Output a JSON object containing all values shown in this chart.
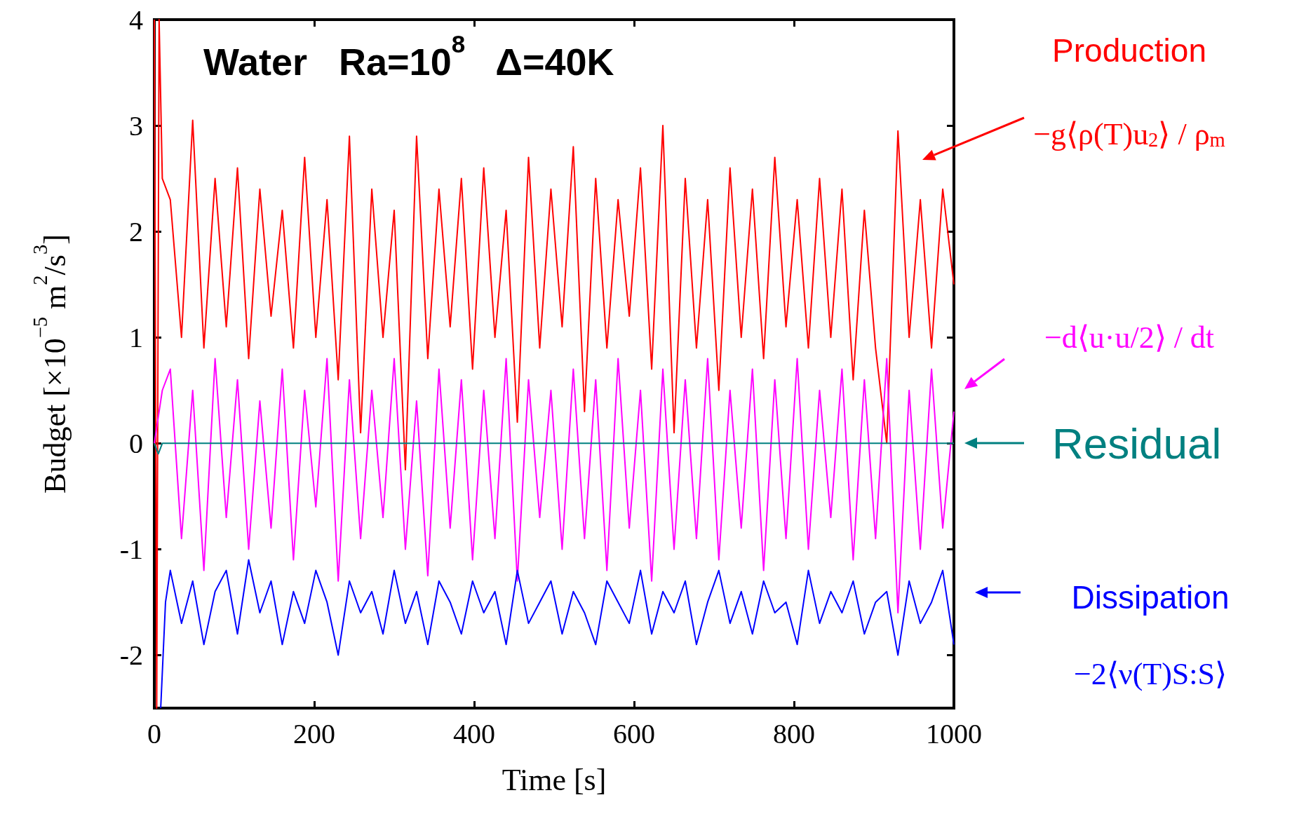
{
  "chart_data": {
    "type": "line",
    "title": "Water   Ra=10$^{8}$   Δ=40K",
    "xlabel": "Time [s]",
    "ylabel": "Budget [×10$^{−5}$ m$^{2}$/s$^{3}$]",
    "xlim": [
      0,
      1000
    ],
    "xticks": [
      0,
      200,
      400,
      600,
      800,
      1000
    ],
    "ylim": [
      -2.5,
      4
    ],
    "yticks": [
      -2,
      -1,
      0,
      1,
      2,
      3,
      4
    ],
    "grid": false,
    "legend": "right",
    "marker": "none",
    "line_style": "solid",
    "annotations": [
      "−g⟨ρ(T)u$_{2}$⟩ / ρ$_{m}$",
      "−d⟨u·u/2⟩ / dt",
      "−2⟨ν(T)S:S⟩"
    ],
    "series": [
      {
        "name": "Production",
        "color": "#ff0000",
        "x": [
          0,
          3,
          6,
          10,
          20,
          34,
          48,
          62,
          76,
          90,
          104,
          118,
          132,
          146,
          160,
          174,
          188,
          202,
          216,
          230,
          244,
          258,
          272,
          286,
          300,
          314,
          328,
          342,
          356,
          370,
          384,
          398,
          412,
          426,
          440,
          454,
          468,
          482,
          496,
          510,
          524,
          538,
          552,
          566,
          580,
          594,
          608,
          622,
          636,
          650,
          664,
          678,
          692,
          706,
          720,
          734,
          748,
          762,
          776,
          790,
          804,
          818,
          832,
          846,
          860,
          874,
          888,
          902,
          916,
          930,
          944,
          958,
          972,
          986,
          1000
        ],
        "values": [
          4,
          -2.5,
          4,
          2.5,
          2.3,
          1.0,
          3.05,
          0.9,
          2.5,
          1.1,
          2.6,
          0.8,
          2.4,
          1.2,
          2.2,
          0.9,
          2.7,
          1.0,
          2.3,
          0.6,
          2.9,
          0.1,
          2.4,
          1.0,
          2.2,
          -0.25,
          2.9,
          0.8,
          2.4,
          1.1,
          2.5,
          0.7,
          2.6,
          1.0,
          2.2,
          0.2,
          2.7,
          0.9,
          2.4,
          1.1,
          2.8,
          0.3,
          2.5,
          0.9,
          2.3,
          1.2,
          2.6,
          0.7,
          3.0,
          0.1,
          2.5,
          0.9,
          2.3,
          0.5,
          2.6,
          1.0,
          2.4,
          0.8,
          2.7,
          1.1,
          2.3,
          0.9,
          2.5,
          1.0,
          2.4,
          0.6,
          2.2,
          0.9,
          0.0,
          2.95,
          1.0,
          2.3,
          0.9,
          2.4,
          1.5
        ]
      },
      {
        "color": "#ff00ff",
        "x": [
          0,
          10,
          20,
          34,
          48,
          62,
          76,
          90,
          104,
          118,
          132,
          146,
          160,
          174,
          188,
          202,
          216,
          230,
          244,
          258,
          272,
          286,
          300,
          314,
          328,
          342,
          356,
          370,
          384,
          398,
          412,
          426,
          440,
          454,
          468,
          482,
          496,
          510,
          524,
          538,
          552,
          566,
          580,
          594,
          608,
          622,
          636,
          650,
          664,
          678,
          692,
          706,
          720,
          734,
          748,
          762,
          776,
          790,
          804,
          818,
          832,
          846,
          860,
          874,
          888,
          902,
          916,
          930,
          944,
          958,
          972,
          986,
          1000
        ],
        "values": [
          0,
          0.5,
          0.7,
          -0.9,
          0.5,
          -1.2,
          0.8,
          -0.7,
          0.6,
          -1.0,
          0.4,
          -0.8,
          0.7,
          -1.1,
          0.5,
          -0.6,
          0.8,
          -1.3,
          0.6,
          -0.9,
          0.5,
          -0.7,
          0.8,
          -1.0,
          0.4,
          -1.25,
          0.7,
          -0.8,
          0.6,
          -1.1,
          0.5,
          -0.9,
          0.8,
          -1.3,
          0.6,
          -0.7,
          0.5,
          -1.0,
          0.7,
          -0.9,
          0.6,
          -1.2,
          0.8,
          -0.8,
          0.5,
          -1.3,
          0.7,
          -1.0,
          0.6,
          -0.9,
          0.8,
          -1.1,
          0.5,
          -0.8,
          0.7,
          -1.2,
          0.6,
          -0.9,
          0.8,
          -1.0,
          0.5,
          -0.7,
          0.7,
          -1.1,
          0.6,
          -0.9,
          0.8,
          -1.6,
          0.5,
          -1.0,
          0.7,
          -0.8,
          0.3
        ]
      },
      {
        "name": "Residual",
        "color": "#008080",
        "x": [
          0,
          5,
          10,
          1000
        ],
        "values": [
          0,
          -0.1,
          0,
          0
        ]
      },
      {
        "name": "Dissipation",
        "color": "#0000ff",
        "x": [
          8,
          14,
          20,
          34,
          48,
          62,
          76,
          90,
          104,
          118,
          132,
          146,
          160,
          174,
          188,
          202,
          216,
          230,
          244,
          258,
          272,
          286,
          300,
          314,
          328,
          342,
          356,
          370,
          384,
          398,
          412,
          426,
          440,
          454,
          468,
          482,
          496,
          510,
          524,
          538,
          552,
          566,
          580,
          594,
          608,
          622,
          636,
          650,
          664,
          678,
          692,
          706,
          720,
          734,
          748,
          762,
          776,
          790,
          804,
          818,
          832,
          846,
          860,
          874,
          888,
          902,
          916,
          930,
          944,
          958,
          972,
          986,
          1000
        ],
        "values": [
          -2.5,
          -1.5,
          -1.2,
          -1.7,
          -1.3,
          -1.9,
          -1.4,
          -1.2,
          -1.8,
          -1.1,
          -1.6,
          -1.3,
          -1.9,
          -1.4,
          -1.7,
          -1.2,
          -1.5,
          -2.0,
          -1.3,
          -1.6,
          -1.4,
          -1.8,
          -1.2,
          -1.7,
          -1.4,
          -1.9,
          -1.3,
          -1.5,
          -1.8,
          -1.3,
          -1.6,
          -1.4,
          -1.9,
          -1.2,
          -1.7,
          -1.5,
          -1.3,
          -1.8,
          -1.4,
          -1.6,
          -1.9,
          -1.3,
          -1.5,
          -1.7,
          -1.2,
          -1.8,
          -1.4,
          -1.6,
          -1.3,
          -1.9,
          -1.5,
          -1.2,
          -1.7,
          -1.4,
          -1.8,
          -1.3,
          -1.6,
          -1.5,
          -1.9,
          -1.2,
          -1.7,
          -1.4,
          -1.6,
          -1.3,
          -1.8,
          -1.5,
          -1.4,
          -2.0,
          -1.3,
          -1.7,
          -1.5,
          -1.2,
          -1.9
        ]
      }
    ]
  }
}
